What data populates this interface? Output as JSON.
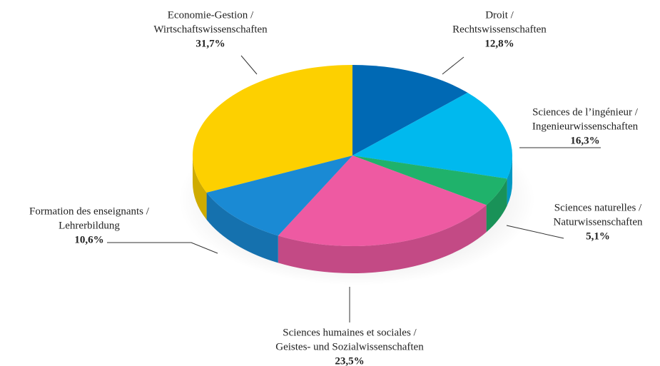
{
  "chart_data": {
    "type": "pie3d",
    "categories": [
      [
        "Droit /",
        "Rechtswissenschaften"
      ],
      [
        "Sciences de l’ingénieur /",
        "Ingenieurwissenschaften"
      ],
      [
        "Sciences naturelles /",
        "Naturwissenschaften"
      ],
      [
        "Sciences humaines et sociales /",
        "Geistes- und Sozialwissenschaften"
      ],
      [
        "Formation des enseignants /",
        "Lehrerbildung"
      ],
      [
        "Economie-Gestion /",
        "Wirtschaftswissenschaften"
      ]
    ],
    "values": [
      12.8,
      16.3,
      5.1,
      23.5,
      10.6,
      31.7
    ],
    "value_labels": [
      "12,8%",
      "16,3%",
      "5,1%",
      "23,5%",
      "10,6%",
      "31,7%"
    ],
    "colors": [
      "#0069b4",
      "#00b9ee",
      "#1fb26b",
      "#ee5aa2",
      "#1a8ad4",
      "#fdd000"
    ]
  }
}
